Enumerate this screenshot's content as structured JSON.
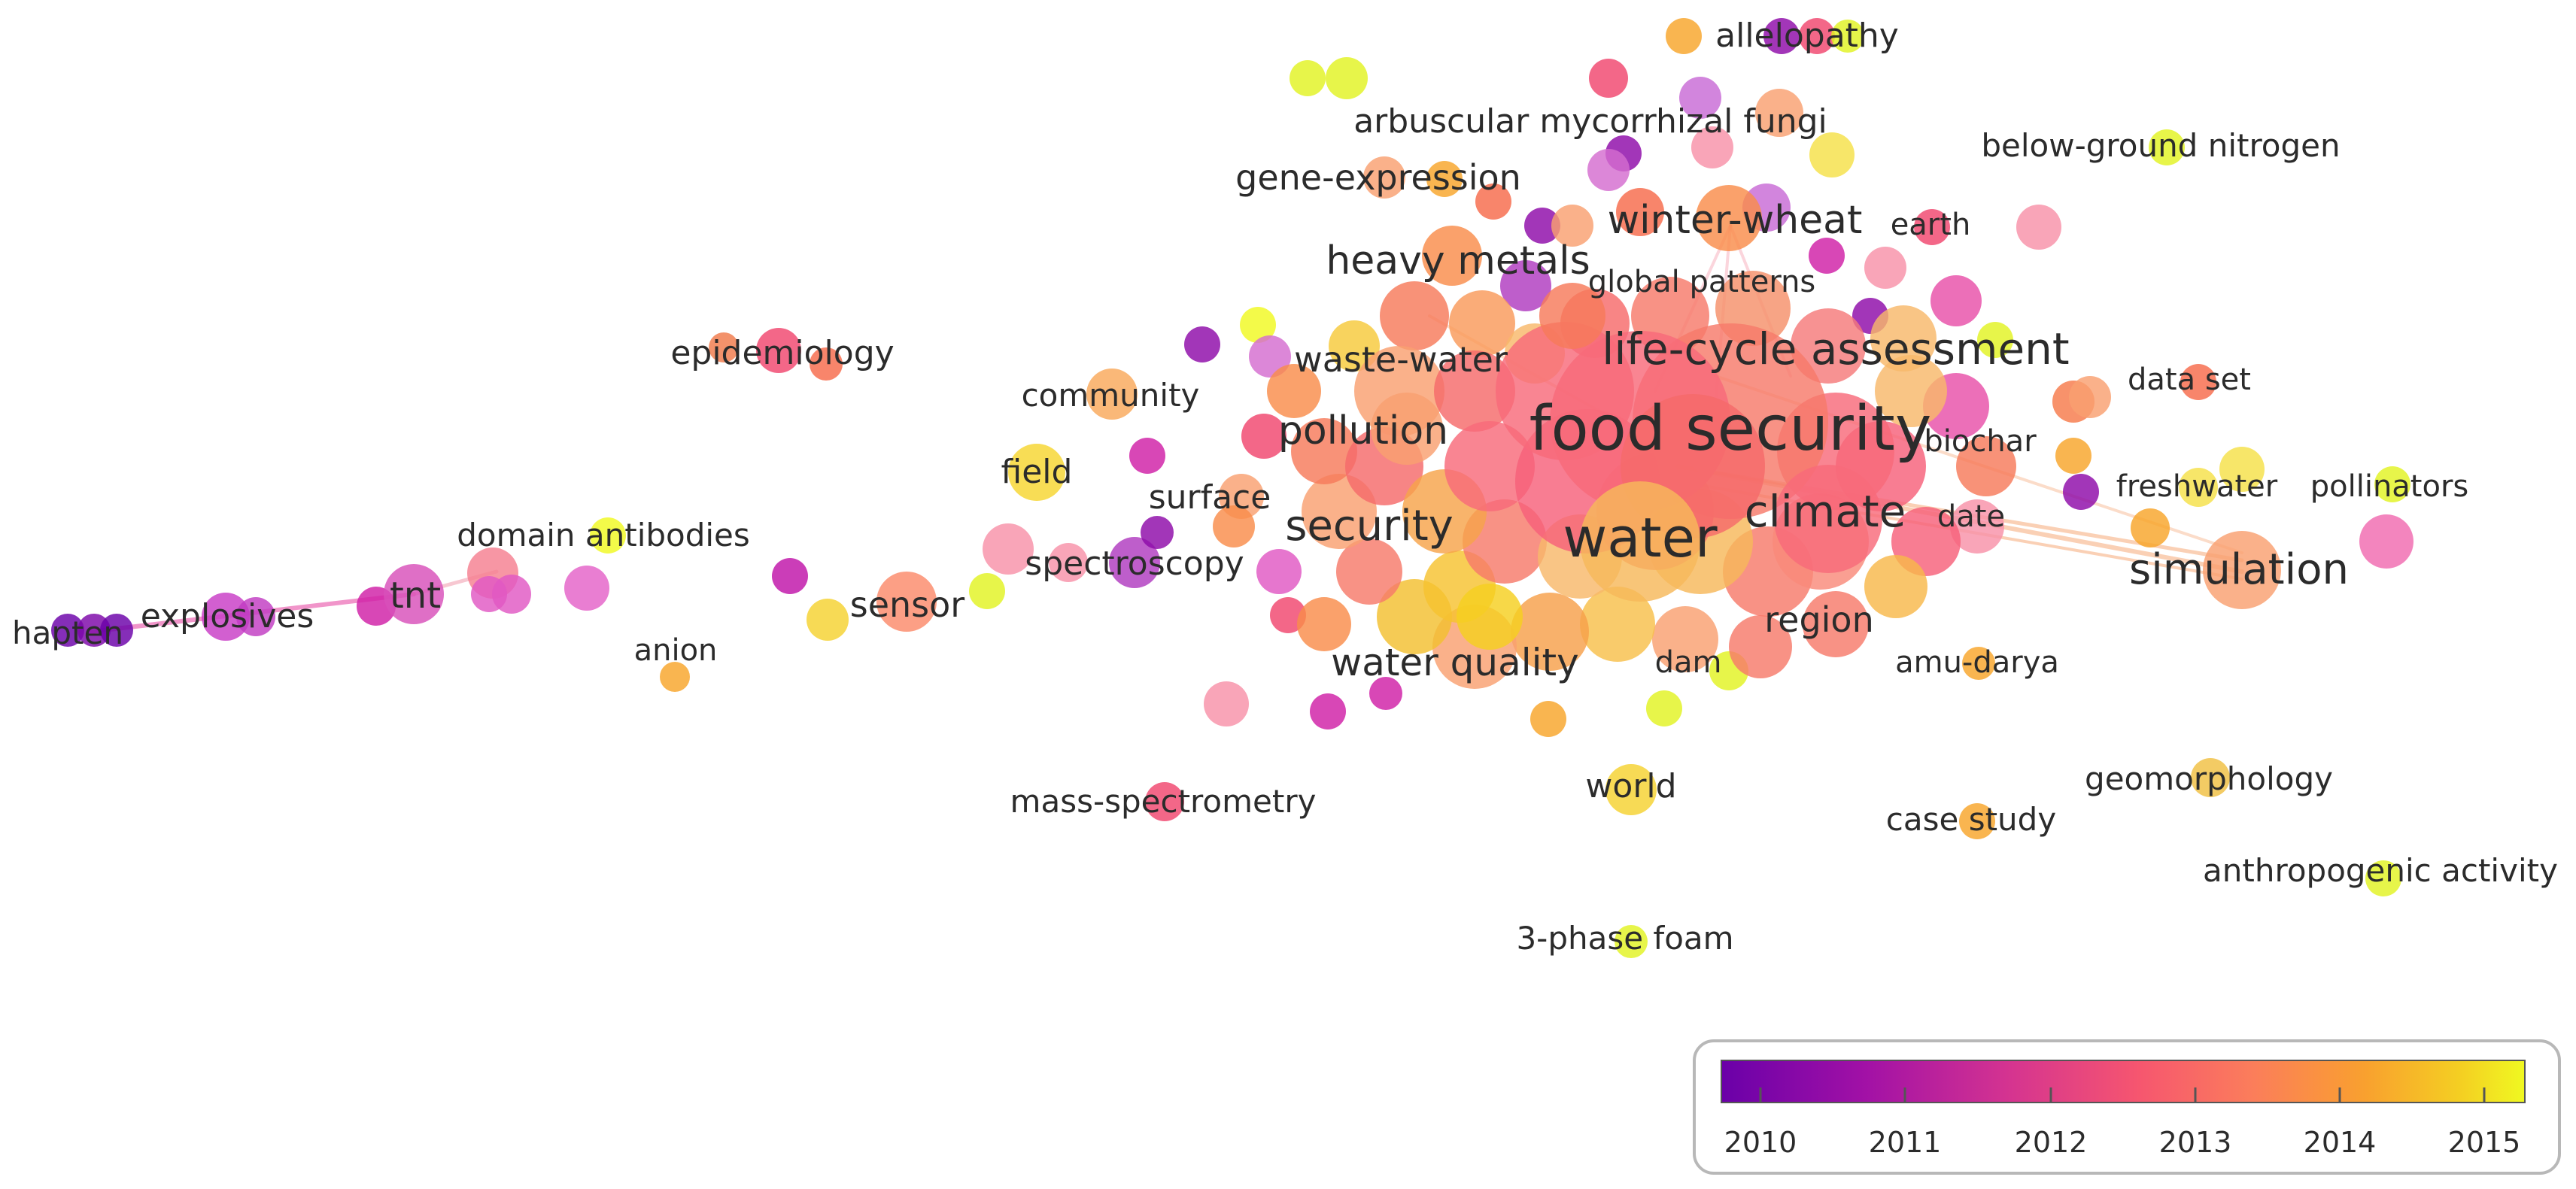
{
  "map": {
    "type": "keyword co-occurrence overlay network",
    "labels": [
      "food security",
      "water",
      "climate",
      "life-cycle assessment",
      "security",
      "pollution",
      "heavy metals",
      "winter-wheat",
      "waste-water",
      "water quality",
      "region",
      "simulation",
      "biochar",
      "date",
      "freshwater",
      "pollinators",
      "data set",
      "earth",
      "global patterns",
      "gene-expression",
      "arbuscular mycorrhizal fungi",
      "allelopathy",
      "below-ground nitrogen",
      "community",
      "field",
      "surface",
      "spectroscopy",
      "sensor",
      "domain antibodies",
      "anion",
      "epidemiology",
      "tnt",
      "explosives",
      "hapten",
      "mass-spectrometry",
      "world",
      "dam",
      "amu-darya",
      "case study",
      "geomorphology",
      "anthropogenic activity",
      "3-phase foam"
    ]
  },
  "legend": {
    "ticks": [
      "2010",
      "2011",
      "2012",
      "2013",
      "2014",
      "2015"
    ],
    "colors": [
      "#6a00a8",
      "#8e0aa8",
      "#c6219e",
      "#f0468e",
      "#fb6a6a",
      "#f98c4a",
      "#f8a52a",
      "#f5c520",
      "#f0f921"
    ]
  }
}
